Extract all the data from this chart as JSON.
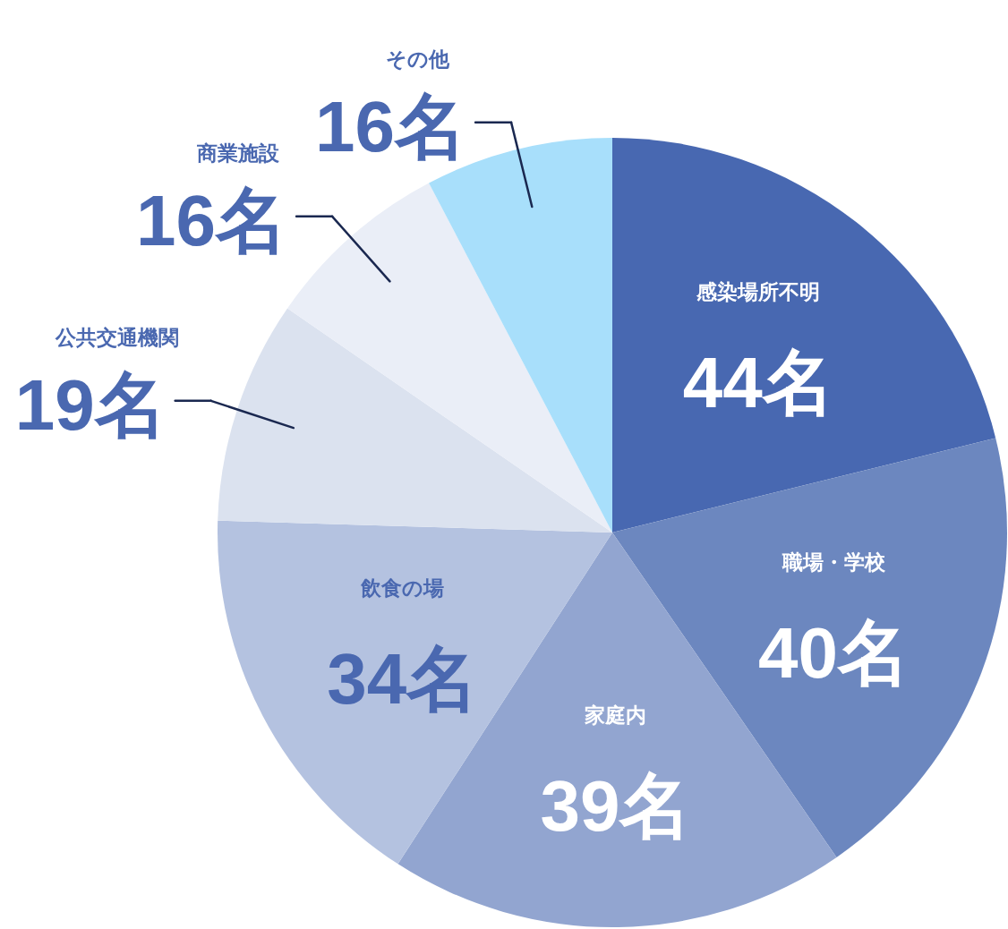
{
  "chart_data": {
    "type": "pie",
    "categories": [
      "感染場所不明",
      "職場・学校",
      "家庭内",
      "飲食の場",
      "公共交通機関",
      "商業施設",
      "その他"
    ],
    "values": [
      44,
      40,
      39,
      34,
      19,
      16,
      16
    ],
    "value_labels": [
      "44名",
      "40名",
      "39名",
      "34名",
      "19名",
      "16名",
      "16名"
    ],
    "colors": [
      "#4868b1",
      "#6c87bf",
      "#92a5d0",
      "#b4c2e0",
      "#dbe2ef",
      "#eaeef7",
      "#a8dffb"
    ]
  }
}
